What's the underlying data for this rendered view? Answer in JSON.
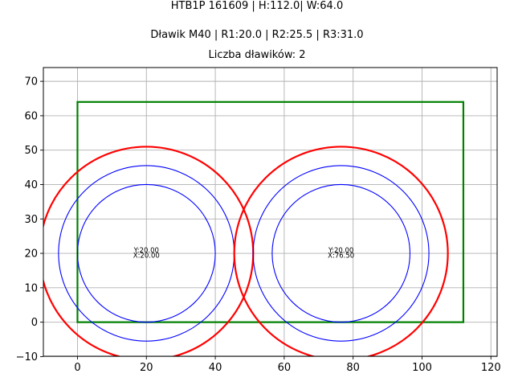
{
  "titles": {
    "line1": "HTB1P 161609 | H:112.0| W:64.0",
    "line2": "Dławik M40 | R1:20.0 | R2:25.5 | R3:31.0",
    "line3": "Liczba dławików: 2"
  },
  "colors": {
    "rectangle": "#008000",
    "outer_circle": "#ff0000",
    "inner_circles": "#0000ff",
    "grid": "#b0b0b0"
  },
  "chart_data": {
    "type": "scatter",
    "title": "HTB1P 161609 | H:112.0| W:64.0 / Dławik M40 | R1:20.0 | R2:25.5 | R3:31.0 / Liczba dławików: 2",
    "xlabel": "",
    "ylabel": "",
    "xlim": [
      -9.9,
      121.8
    ],
    "ylim": [
      -9.9,
      74.0
    ],
    "xticks": [
      0,
      20,
      40,
      60,
      80,
      100,
      120
    ],
    "yticks": [
      -10,
      0,
      10,
      20,
      30,
      40,
      50,
      60,
      70
    ],
    "grid": true,
    "rectangle": {
      "x": 0,
      "y": 0,
      "width": 112.0,
      "height": 64.0,
      "color": "#008000"
    },
    "glands": [
      {
        "cx": 20.0,
        "cy": 20.0,
        "r1": 20.0,
        "r2": 25.5,
        "r3": 31.0,
        "label_y": "Y:20.00",
        "label_x": "X:20.00"
      },
      {
        "cx": 76.5,
        "cy": 20.0,
        "r1": 20.0,
        "r2": 25.5,
        "r3": 31.0,
        "label_y": "Y:20.00",
        "label_x": "X:76.50"
      }
    ],
    "gland_count": 2
  }
}
